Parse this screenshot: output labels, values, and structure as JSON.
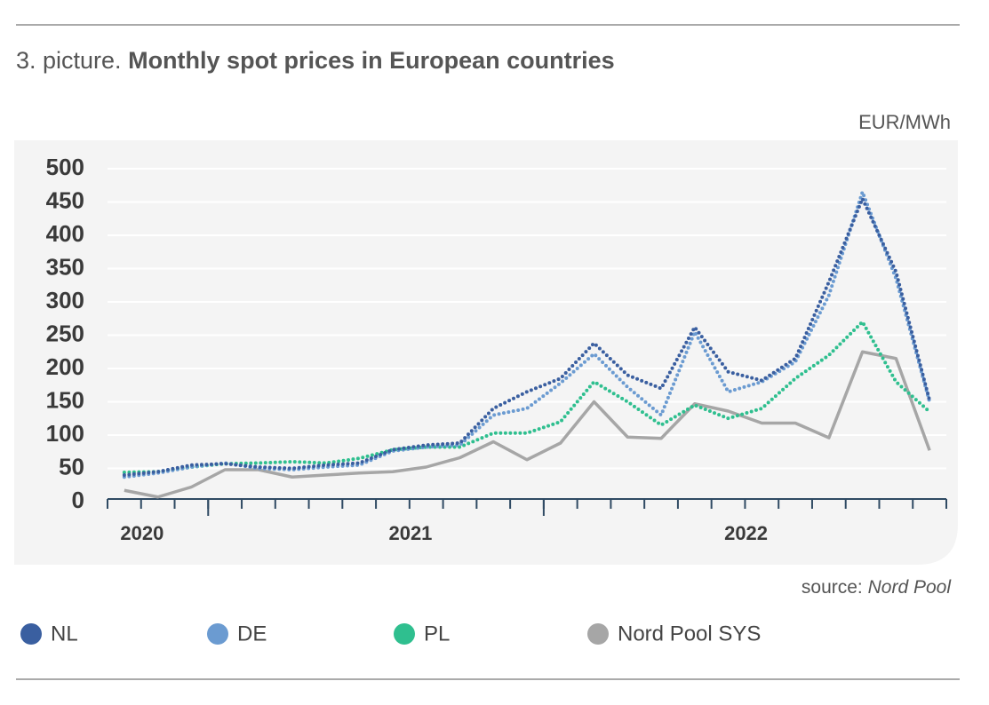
{
  "chart_data": {
    "type": "line",
    "title_prefix": "3. picture.",
    "title": "Monthly spot prices in European countries",
    "y_unit": "EUR/MWh",
    "source_label": "source:",
    "source": "Nord Pool",
    "categories": [
      "2020",
      null,
      null,
      null,
      null,
      null,
      null,
      null,
      "2021",
      null,
      null,
      null,
      null,
      null,
      null,
      null,
      null,
      null,
      "2022",
      null,
      null,
      null,
      null,
      null,
      null
    ],
    "series": [
      {
        "name": "NL",
        "color": "#3a5fa0",
        "style": "dotted",
        "values": [
          40,
          45,
          55,
          57,
          52,
          50,
          55,
          58,
          78,
          85,
          88,
          140,
          165,
          185,
          238,
          190,
          170,
          262,
          195,
          182,
          215,
          330,
          455,
          345,
          152
        ]
      },
      {
        "name": "DE",
        "color": "#6b9bd1",
        "style": "dotted",
        "values": [
          37,
          43,
          52,
          58,
          50,
          48,
          52,
          55,
          76,
          82,
          85,
          130,
          140,
          178,
          222,
          172,
          130,
          255,
          165,
          180,
          210,
          310,
          465,
          335,
          150
        ]
      },
      {
        "name": "PL",
        "color": "#2fbf8f",
        "style": "dotted",
        "values": [
          44,
          45,
          52,
          57,
          58,
          60,
          58,
          65,
          78,
          82,
          82,
          103,
          103,
          120,
          180,
          150,
          115,
          145,
          125,
          140,
          185,
          220,
          270,
          180,
          135
        ]
      },
      {
        "name": "Nord Pool SYS",
        "color": "#a6a6a6",
        "style": "solid",
        "values": [
          17,
          7,
          22,
          48,
          48,
          37,
          40,
          43,
          45,
          52,
          66,
          90,
          63,
          88,
          150,
          97,
          95,
          147,
          136,
          118,
          118,
          96,
          225,
          215,
          77
        ]
      }
    ],
    "ylim": [
      0,
      500
    ],
    "yticks": [
      0,
      50,
      100,
      150,
      200,
      250,
      300,
      350,
      400,
      450,
      500
    ],
    "grid": true
  }
}
